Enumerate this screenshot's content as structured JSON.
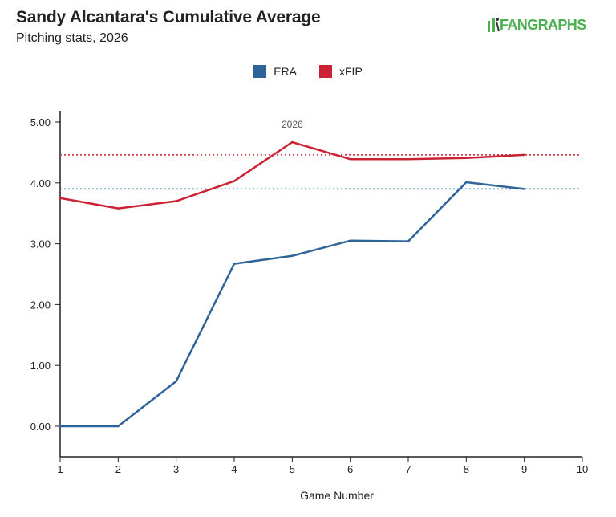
{
  "header": {
    "title": "Sandy Alcantara's Cumulative Average",
    "subtitle": "Pitching stats, 2026",
    "brand": "FANGRAPHS"
  },
  "colors": {
    "era": "#2f6499",
    "xfip": "#cc2233",
    "brand_green": "#4caf50",
    "axis": "#222222"
  },
  "chart_data": {
    "type": "line",
    "title": "Sandy Alcantara's Cumulative Average",
    "subtitle": "Pitching stats, 2026",
    "xlabel": "Game Number",
    "ylabel": "",
    "xlim": [
      1,
      10
    ],
    "ylim": [
      0,
      5
    ],
    "x_ticks": [
      "1",
      "2",
      "3",
      "4",
      "5",
      "6",
      "7",
      "8",
      "9",
      "10"
    ],
    "y_ticks": [
      "0.00",
      "1.00",
      "2.00",
      "3.00",
      "4.00",
      "5.00"
    ],
    "grid": false,
    "legend_position": "top-center",
    "annotation": {
      "text": "2026",
      "x": 5
    },
    "series": [
      {
        "name": "ERA",
        "color": "#2f6499",
        "x": [
          1,
          2,
          3,
          4,
          5,
          6,
          7,
          8,
          9
        ],
        "values": [
          0.0,
          0.0,
          0.74,
          2.67,
          2.8,
          3.05,
          3.04,
          4.01,
          3.9
        ],
        "season_average": 3.9
      },
      {
        "name": "xFIP",
        "color": "#cc2233",
        "x": [
          1,
          2,
          3,
          4,
          5,
          6,
          7,
          8,
          9
        ],
        "values": [
          3.75,
          3.58,
          3.7,
          4.03,
          4.67,
          4.39,
          4.39,
          4.41,
          4.46
        ],
        "season_average": 4.46
      }
    ]
  }
}
